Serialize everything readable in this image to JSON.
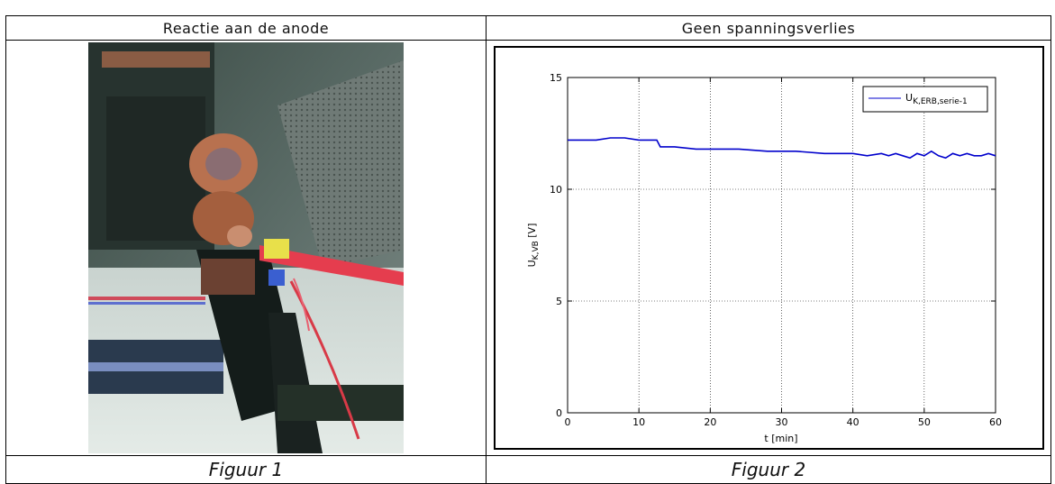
{
  "headers": {
    "left": "Reactie aan de anode",
    "right": "Geen spanningsverlies"
  },
  "captions": {
    "left": "Figuur 1",
    "right": "Figuur 2"
  },
  "photo": {
    "icon": "battery-terminal-photo"
  },
  "chart_data": {
    "type": "line",
    "xlabel": "t [min]",
    "ylabel_main": "U",
    "ylabel_sub": "K,VB",
    "ylabel_unit": " [V]",
    "xlim": [
      0,
      60
    ],
    "ylim": [
      0,
      15
    ],
    "xticks": [
      "0",
      "10",
      "20",
      "30",
      "40",
      "50",
      "60"
    ],
    "yticks": [
      "0",
      "5",
      "10",
      "15"
    ],
    "grid": true,
    "legend_placement": "top-right",
    "series": [
      {
        "name_main": "U",
        "name_sub": "K,ERB,serie-1",
        "color": "#0000cc",
        "x": [
          0,
          2,
          4,
          6,
          8,
          10,
          12,
          12.5,
          13,
          15,
          18,
          20,
          24,
          28,
          32,
          36,
          40,
          42,
          44,
          45,
          46,
          47,
          48,
          49,
          50,
          51,
          52,
          53,
          54,
          55,
          56,
          57,
          58,
          59,
          60
        ],
        "y": [
          12.2,
          12.2,
          12.2,
          12.3,
          12.3,
          12.2,
          12.2,
          12.2,
          11.9,
          11.9,
          11.8,
          11.8,
          11.8,
          11.7,
          11.7,
          11.6,
          11.6,
          11.5,
          11.6,
          11.5,
          11.6,
          11.5,
          11.4,
          11.6,
          11.5,
          11.7,
          11.5,
          11.4,
          11.6,
          11.5,
          11.6,
          11.5,
          11.5,
          11.6,
          11.5
        ]
      }
    ]
  }
}
